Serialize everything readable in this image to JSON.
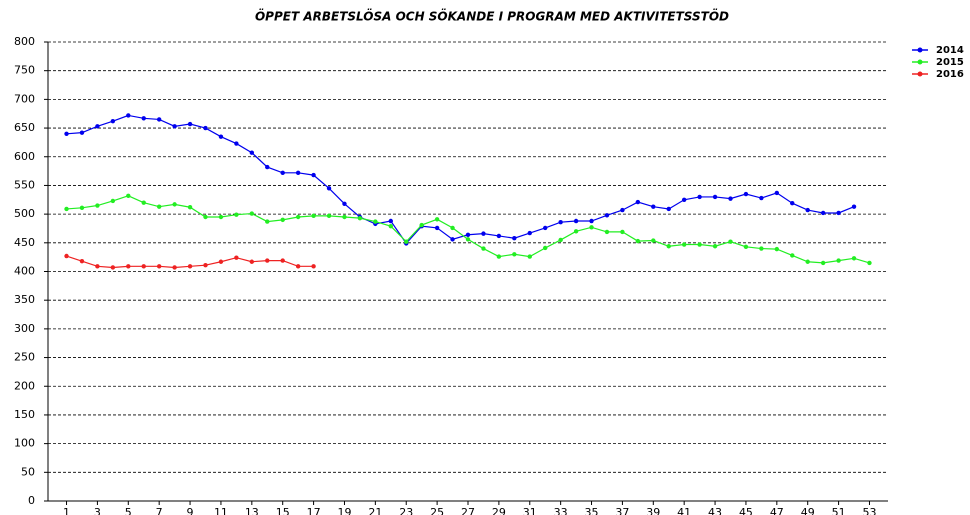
{
  "chart_data": {
    "type": "line",
    "title": "ÖPPET ARBETSLÖSA OCH SÖKANDE I PROGRAM MED AKTIVITETSSTÖD",
    "x": [
      1,
      2,
      3,
      4,
      5,
      6,
      7,
      8,
      9,
      10,
      11,
      12,
      13,
      14,
      15,
      16,
      17,
      18,
      19,
      20,
      21,
      22,
      23,
      24,
      25,
      26,
      27,
      28,
      29,
      30,
      31,
      32,
      33,
      34,
      35,
      36,
      37,
      38,
      39,
      40,
      41,
      42,
      43,
      44,
      45,
      46,
      47,
      48,
      49,
      50,
      51,
      52,
      53
    ],
    "xlim": [
      -0.2,
      54.2
    ],
    "xticks": [
      1,
      3,
      5,
      7,
      9,
      11,
      13,
      15,
      17,
      19,
      21,
      23,
      25,
      27,
      29,
      31,
      33,
      35,
      37,
      39,
      41,
      43,
      45,
      47,
      49,
      51,
      53
    ],
    "ylim": [
      0,
      800
    ],
    "yticks": [
      0,
      50,
      100,
      150,
      200,
      250,
      300,
      350,
      400,
      450,
      500,
      550,
      600,
      650,
      700,
      750,
      800
    ],
    "grid": true,
    "legend": "top-right",
    "series": [
      {
        "name": "2014",
        "color": "#0000ee",
        "values": [
          640,
          642,
          653,
          662,
          672,
          667,
          665,
          653,
          657,
          650,
          635,
          623,
          607,
          582,
          572,
          572,
          568,
          545,
          518,
          495,
          483,
          488,
          449,
          479,
          476,
          456,
          464,
          466,
          462,
          458,
          467,
          476,
          486,
          488,
          488,
          498,
          507,
          521,
          513,
          509,
          525,
          530,
          530,
          527,
          535,
          528,
          537,
          519,
          507,
          502,
          502,
          513,
          null
        ]
      },
      {
        "name": "2015",
        "color": "#22ee22",
        "values": [
          509,
          511,
          515,
          523,
          532,
          520,
          513,
          517,
          512,
          495,
          495,
          499,
          501,
          487,
          490,
          495,
          497,
          497,
          495,
          493,
          487,
          479,
          452,
          481,
          491,
          476,
          456,
          440,
          426,
          430,
          426,
          441,
          455,
          470,
          477,
          469,
          469,
          453,
          454,
          444,
          447,
          447,
          444,
          452,
          443,
          440,
          439,
          428,
          417,
          415,
          419,
          423,
          415
        ]
      },
      {
        "name": "2016",
        "color": "#ee2222",
        "values": [
          427,
          418,
          409,
          407,
          409,
          409,
          409,
          407,
          409,
          411,
          417,
          424,
          417,
          419,
          419,
          409,
          409,
          null,
          null,
          null,
          null,
          null,
          null,
          null,
          null,
          null,
          null,
          null,
          null,
          null,
          null,
          null,
          null,
          null,
          null,
          null,
          null,
          null,
          null,
          null,
          null,
          null,
          null,
          null,
          null,
          null,
          null,
          null,
          null,
          null,
          null,
          null,
          null
        ]
      }
    ]
  }
}
